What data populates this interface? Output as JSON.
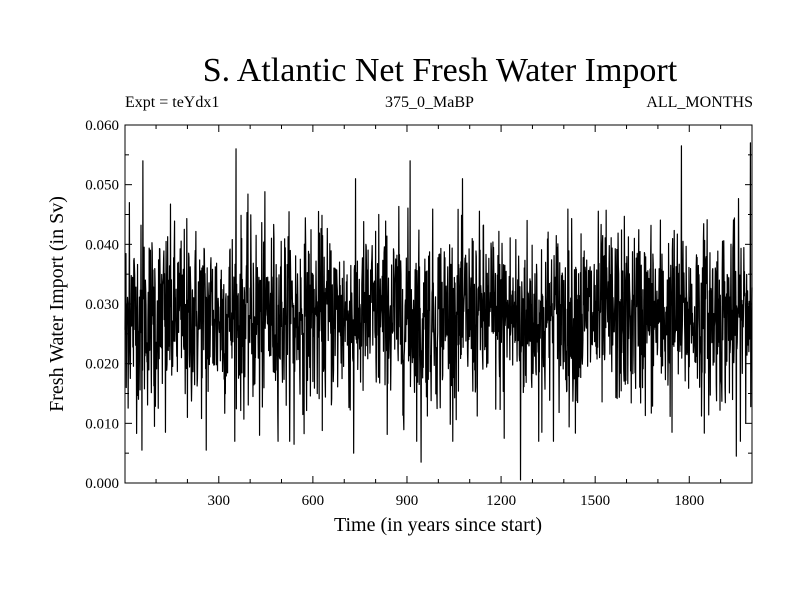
{
  "chart_data": {
    "type": "line",
    "title": "S. Atlantic Net Fresh Water Import",
    "subtitle_left": "Expt = teYdx1",
    "subtitle_center": "375_0_MaBP",
    "subtitle_right": "ALL_MONTHS",
    "xlabel": "Time (in years since start)",
    "ylabel": "Fresh Water Import (in Sv)",
    "xlim": [
      1,
      2000
    ],
    "ylim": [
      0.0,
      0.06
    ],
    "x_ticks": [
      300,
      600,
      900,
      1200,
      1500,
      1800
    ],
    "x_tick_labels": [
      "300",
      "600",
      "900",
      "1200",
      "1500",
      "1800"
    ],
    "y_ticks": [
      0.0,
      0.01,
      0.02,
      0.03,
      0.04,
      0.05,
      0.06
    ],
    "y_tick_labels": [
      "0.000",
      "0.010",
      "0.020",
      "0.030",
      "0.040",
      "0.050",
      "0.060"
    ],
    "grid": false,
    "series": [
      {
        "name": "Net fresh water import",
        "color": "#000000",
        "mean": 0.028,
        "std": 0.0075,
        "n_points": 2000,
        "notable_points": [
          {
            "x": 5,
            "y": 0.016
          },
          {
            "x": 15,
            "y": 0.047
          },
          {
            "x": 55,
            "y": 0.0055
          },
          {
            "x": 58,
            "y": 0.054
          },
          {
            "x": 95,
            "y": 0.0095
          },
          {
            "x": 130,
            "y": 0.0085
          },
          {
            "x": 200,
            "y": 0.011
          },
          {
            "x": 260,
            "y": 0.0055
          },
          {
            "x": 355,
            "y": 0.056
          },
          {
            "x": 430,
            "y": 0.008
          },
          {
            "x": 540,
            "y": 0.0065
          },
          {
            "x": 730,
            "y": 0.005
          },
          {
            "x": 810,
            "y": 0.045
          },
          {
            "x": 910,
            "y": 0.054
          },
          {
            "x": 945,
            "y": 0.0035
          },
          {
            "x": 1210,
            "y": 0.0075
          },
          {
            "x": 1262,
            "y": 0.0005
          },
          {
            "x": 1330,
            "y": 0.0085
          },
          {
            "x": 1745,
            "y": 0.0085
          },
          {
            "x": 1775,
            "y": 0.0565
          },
          {
            "x": 1950,
            "y": 0.0045
          },
          {
            "x": 1995,
            "y": 0.057
          }
        ]
      }
    ]
  }
}
